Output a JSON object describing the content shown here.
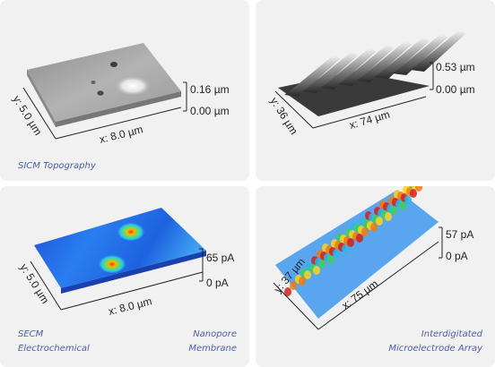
{
  "panels": [
    {
      "caption": [
        "SICM Topography"
      ],
      "scale_top": "0.16 µm",
      "scale_bottom": "0.00 µm",
      "x_label": "x: 8.0 µm",
      "y_label": "y: 5.0 µm"
    },
    {
      "caption": [],
      "scale_top": "0.53 µm",
      "scale_bottom": "0.00 µm",
      "x_label": "x: 74 µm",
      "y_label": "y: 36 µm"
    },
    {
      "caption": [
        "SECM",
        "Electrochemical"
      ],
      "caption_right": [
        "Nanopore",
        "Membrane"
      ],
      "scale_top": "65 pA",
      "scale_bottom": "0 pA",
      "x_label": "x: 8.0 µm",
      "y_label": "y: 5.0 µm"
    },
    {
      "caption": [],
      "caption_right": [
        "Interdigitated",
        "Microelectrode Array"
      ],
      "scale_top": "57 pA",
      "scale_bottom": "0 pA",
      "x_label": "x: 75 µm",
      "y_label": "y: 37 µm"
    }
  ],
  "colors": {
    "card_bg": "#f1f1f2",
    "caption": "#4a5fa5",
    "axis": "#222222"
  }
}
